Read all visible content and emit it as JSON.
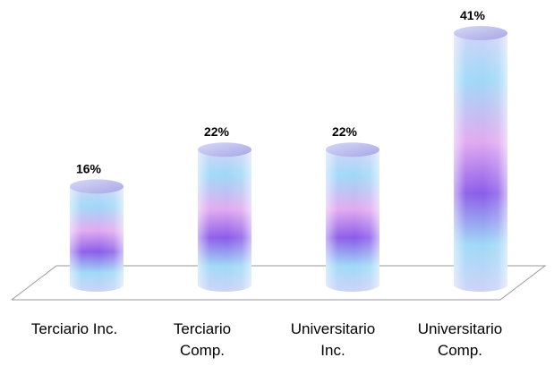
{
  "chart_data": {
    "type": "bar",
    "style": "3d-cylinder",
    "categories": [
      [
        "Terciario Inc."
      ],
      [
        "Terciario",
        "Comp."
      ],
      [
        "Universitario",
        "Inc."
      ],
      [
        "Universitario",
        "Comp."
      ]
    ],
    "values": [
      16,
      22,
      22,
      41
    ],
    "data_labels": [
      "16%",
      "22%",
      "22%",
      "41%"
    ],
    "ylim": [
      0,
      41
    ],
    "grid": false,
    "legend": "none",
    "colors": {
      "cylinder_gradient": [
        "#c9d6f7",
        "#9ad8f7",
        "#e2a8f0",
        "#8a5ae8",
        "#9ad8f7",
        "#c9d6f7"
      ],
      "floor_line": "#999999"
    }
  }
}
